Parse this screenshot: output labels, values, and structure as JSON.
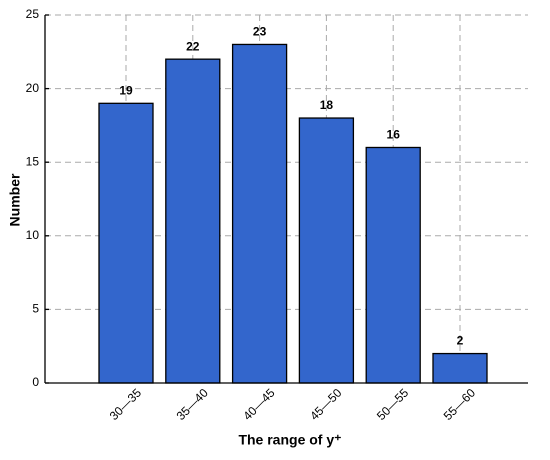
{
  "chart_data": {
    "type": "bar",
    "x_label": "The range of y⁺",
    "y_label": "Number",
    "categories": [
      "30—35",
      "35—40",
      "40—45",
      "45—50",
      "50—55",
      "55—60"
    ],
    "values": [
      19,
      22,
      23,
      18,
      16,
      2
    ],
    "color": "#3366cc",
    "ylim": [
      0,
      25
    ],
    "yticks": [
      0,
      5,
      10,
      15,
      20,
      25
    ],
    "grid": true
  }
}
